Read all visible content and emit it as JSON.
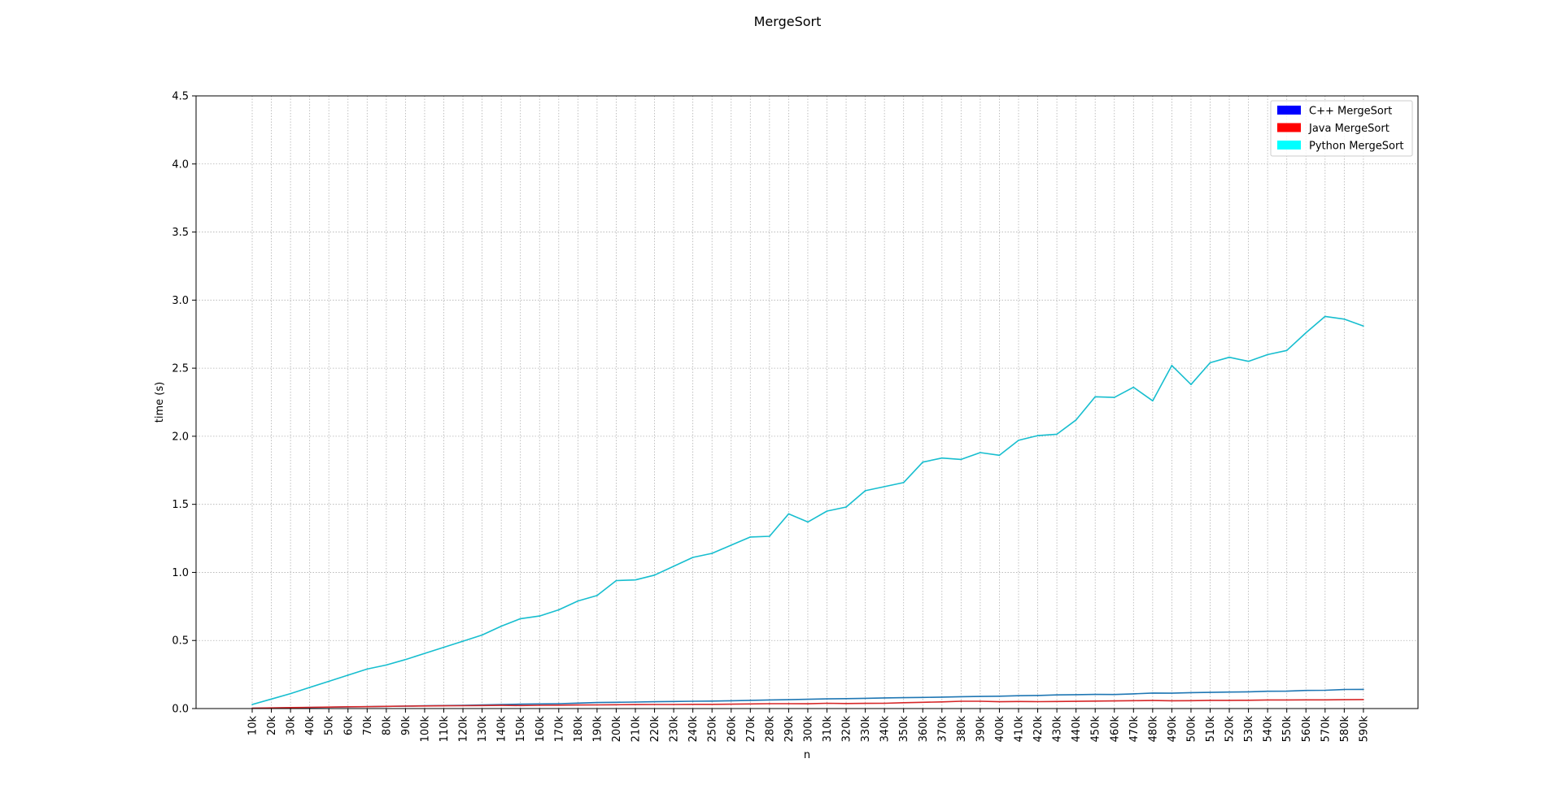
{
  "chart_data": {
    "type": "line",
    "title": "MergeSort",
    "xlabel": "n",
    "ylabel": "time (s)",
    "ylim": [
      0,
      4.5
    ],
    "yticks": [
      0.0,
      0.5,
      1.0,
      1.5,
      2.0,
      2.5,
      3.0,
      3.5,
      4.0,
      4.5
    ],
    "ytick_labels": [
      "0.0",
      "0.5",
      "1.0",
      "1.5",
      "2.0",
      "2.5",
      "3.0",
      "3.5",
      "4.0",
      "4.5"
    ],
    "grid": true,
    "legend_position": "top-right",
    "categories": [
      "10k",
      "20k",
      "30k",
      "40k",
      "50k",
      "60k",
      "70k",
      "80k",
      "90k",
      "100k",
      "110k",
      "120k",
      "130k",
      "140k",
      "150k",
      "160k",
      "170k",
      "180k",
      "190k",
      "200k",
      "210k",
      "220k",
      "230k",
      "240k",
      "250k",
      "260k",
      "270k",
      "280k",
      "290k",
      "300k",
      "310k",
      "320k",
      "330k",
      "340k",
      "350k",
      "360k",
      "370k",
      "380k",
      "390k",
      "400k",
      "410k",
      "420k",
      "430k",
      "440k",
      "450k",
      "460k",
      "470k",
      "480k",
      "490k",
      "500k",
      "510k",
      "520k",
      "530k",
      "540k",
      "550k",
      "560k",
      "570k",
      "580k",
      "590k"
    ],
    "legend": [
      {
        "label": "C++ MergeSort",
        "color": "#0000ff"
      },
      {
        "label": "Java MergeSort",
        "color": "#ff0000"
      },
      {
        "label": "Python MergeSort",
        "color": "#00ffff"
      }
    ],
    "series": [
      {
        "color": "#1f77b4",
        "values": [
          0.002,
          0.004,
          0.006,
          0.008,
          0.01,
          0.012,
          0.014,
          0.016,
          0.018,
          0.02,
          0.022,
          0.024,
          0.027,
          0.03,
          0.032,
          0.034,
          0.036,
          0.04,
          0.044,
          0.046,
          0.048,
          0.05,
          0.052,
          0.054,
          0.055,
          0.057,
          0.06,
          0.063,
          0.065,
          0.068,
          0.071,
          0.073,
          0.075,
          0.078,
          0.08,
          0.082,
          0.084,
          0.087,
          0.089,
          0.091,
          0.094,
          0.096,
          0.1,
          0.102,
          0.104,
          0.103,
          0.108,
          0.114,
          0.113,
          0.117,
          0.119,
          0.121,
          0.123,
          0.127,
          0.128,
          0.133,
          0.134,
          0.14,
          0.141
        ]
      },
      {
        "color": "#d62728",
        "values": [
          0.003,
          0.005,
          0.007,
          0.009,
          0.011,
          0.013,
          0.014,
          0.016,
          0.018,
          0.019,
          0.02,
          0.021,
          0.022,
          0.023,
          0.022,
          0.024,
          0.025,
          0.026,
          0.027,
          0.028,
          0.029,
          0.03,
          0.03,
          0.031,
          0.031,
          0.032,
          0.034,
          0.036,
          0.036,
          0.035,
          0.039,
          0.037,
          0.038,
          0.039,
          0.043,
          0.046,
          0.049,
          0.054,
          0.054,
          0.05,
          0.052,
          0.051,
          0.052,
          0.053,
          0.055,
          0.056,
          0.058,
          0.059,
          0.057,
          0.058,
          0.06,
          0.06,
          0.061,
          0.063,
          0.063,
          0.064,
          0.064,
          0.065,
          0.066
        ]
      },
      {
        "color": "#17becf",
        "values": [
          0.03,
          0.07,
          0.11,
          0.155,
          0.2,
          0.245,
          0.29,
          0.32,
          0.36,
          0.405,
          0.45,
          0.495,
          0.54,
          0.605,
          0.66,
          0.68,
          0.725,
          0.79,
          0.83,
          0.94,
          0.945,
          0.98,
          1.045,
          1.11,
          1.14,
          1.2,
          1.26,
          1.265,
          1.43,
          1.37,
          1.45,
          1.48,
          1.6,
          1.63,
          1.66,
          1.81,
          1.84,
          1.83,
          1.88,
          1.86,
          1.97,
          2.005,
          2.015,
          2.12,
          2.29,
          2.285,
          2.36,
          2.26,
          2.52,
          2.38,
          2.54,
          2.58,
          2.55,
          2.6,
          2.63,
          2.76,
          2.88,
          2.86,
          2.81
        ]
      }
    ]
  }
}
